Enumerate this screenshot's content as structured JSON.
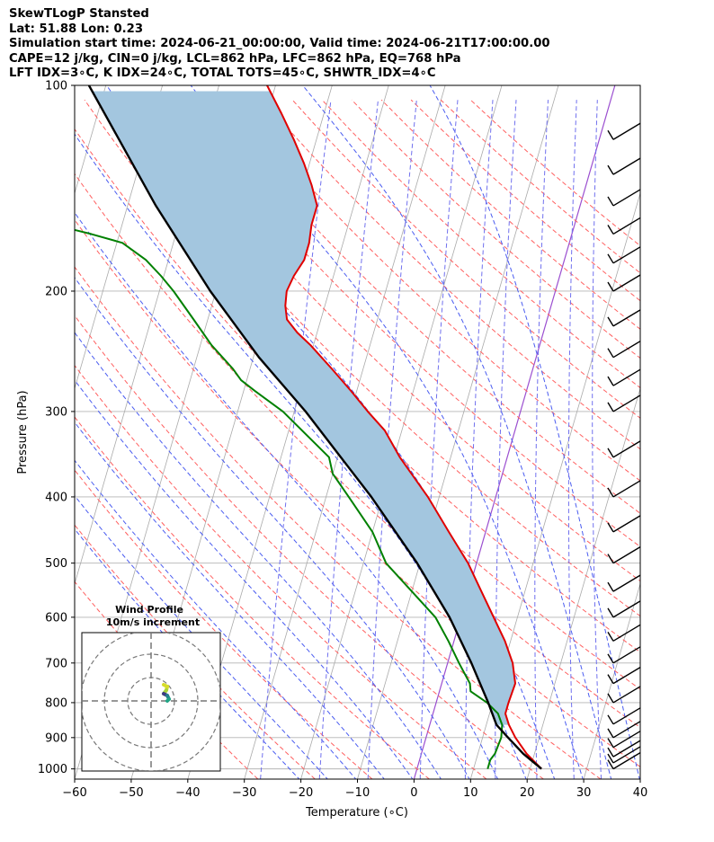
{
  "header": {
    "line1": "SkewTLogP Stansted",
    "line2": "Lat: 51.88   Lon: 0.23",
    "line3": "Simulation start time: 2024-06-21_00:00:00, Valid time: 2024-06-21T17:00:00.00",
    "line4": "CAPE=12 j/kg, CIN=0 j/kg, LCL=862 hPa, LFC=862 hPa, EQ=768 hPa",
    "line5": "LFT IDX=3∘C, K IDX=24∘C, TOTAL TOTS=45∘C, SHWTR_IDX=4∘C"
  },
  "colors": {
    "temperature": "#e00000",
    "dewpoint": "#008000",
    "parcel": "#000000",
    "cape_fill": "#a3c6df",
    "dry_adiabat": "#ff6060",
    "moist_adiabat": "#4a5cf0",
    "mixing_ratio": "#7070ee",
    "isotherm": "#aaaaaa",
    "zero_isotherm": "#9b4fd0",
    "isobar": "#b4b4b4"
  },
  "inset": {
    "title_line1": "Wind Profile",
    "title_line2": "10m/s increment"
  },
  "chart_data": {
    "type": "line",
    "xlabel": "Temperature (∘C)",
    "ylabel": "Pressure (hPa)",
    "xlim": [
      -60,
      40
    ],
    "ylim": [
      1035,
      100
    ],
    "y_scale": "log",
    "skew": "skew-T log-p diagram",
    "grid": true,
    "x_ticks": [
      -60,
      -50,
      -40,
      -30,
      -20,
      -10,
      0,
      10,
      20,
      30,
      40
    ],
    "y_ticks": [
      100,
      200,
      300,
      400,
      500,
      600,
      700,
      800,
      900,
      1000
    ],
    "series": [
      {
        "key": "temperature",
        "color": "#e00000",
        "values": [
          [
            1000,
            22
          ],
          [
            950,
            18.6
          ],
          [
            900,
            15.8
          ],
          [
            862,
            14
          ],
          [
            830,
            12.8
          ],
          [
            800,
            12.8
          ],
          [
            750,
            13
          ],
          [
            700,
            11.5
          ],
          [
            650,
            9
          ],
          [
            600,
            5.8
          ],
          [
            550,
            2.3
          ],
          [
            500,
            -1.5
          ],
          [
            450,
            -6.5
          ],
          [
            400,
            -12
          ],
          [
            350,
            -19
          ],
          [
            320,
            -23
          ],
          [
            300,
            -27
          ],
          [
            280,
            -31
          ],
          [
            260,
            -35.5
          ],
          [
            240,
            -40.5
          ],
          [
            230,
            -43.5
          ],
          [
            220,
            -46
          ],
          [
            210,
            -47
          ],
          [
            200,
            -47.5
          ],
          [
            190,
            -47
          ],
          [
            180,
            -46
          ],
          [
            170,
            -46
          ],
          [
            160,
            -46.5
          ],
          [
            150,
            -46.5
          ],
          [
            140,
            -48.5
          ],
          [
            130,
            -51
          ],
          [
            120,
            -54
          ],
          [
            110,
            -57.5
          ],
          [
            100,
            -61.5
          ]
        ]
      },
      {
        "key": "dewpoint",
        "color": "#008000",
        "values": [
          [
            1000,
            12.5
          ],
          [
            970,
            12.5
          ],
          [
            950,
            13
          ],
          [
            900,
            13.3
          ],
          [
            862,
            12.8
          ],
          [
            830,
            11.5
          ],
          [
            800,
            9
          ],
          [
            770,
            5.5
          ],
          [
            750,
            5
          ],
          [
            700,
            2
          ],
          [
            650,
            -1
          ],
          [
            600,
            -4.5
          ],
          [
            550,
            -10
          ],
          [
            500,
            -16
          ],
          [
            450,
            -20
          ],
          [
            400,
            -26
          ],
          [
            370,
            -30
          ],
          [
            350,
            -31.5
          ],
          [
            300,
            -42
          ],
          [
            280,
            -48
          ],
          [
            270,
            -51
          ],
          [
            260,
            -53
          ],
          [
            240,
            -58
          ],
          [
            220,
            -62.5
          ],
          [
            200,
            -67.5
          ],
          [
            190,
            -70.5
          ],
          [
            180,
            -74
          ],
          [
            170,
            -79
          ],
          [
            165,
            -85
          ],
          [
            160,
            -92
          ],
          [
            150,
            -93
          ],
          [
            140,
            -92
          ],
          [
            120,
            -93
          ],
          [
            100,
            -96
          ]
        ]
      },
      {
        "key": "parcel",
        "color": "#000000",
        "values": [
          [
            1000,
            22
          ],
          [
            950,
            18
          ],
          [
            900,
            14.5
          ],
          [
            862,
            11.8
          ],
          [
            800,
            9.2
          ],
          [
            700,
            4.2
          ],
          [
            600,
            -2
          ],
          [
            500,
            -10.5
          ],
          [
            400,
            -22
          ],
          [
            300,
            -38
          ],
          [
            250,
            -49
          ],
          [
            200,
            -61
          ],
          [
            150,
            -75
          ],
          [
            100,
            -93
          ]
        ]
      }
    ],
    "cape_region": "between parcel and environment temperature, 862 to 100 hPa",
    "wind_barbs": {
      "pressures": [
        1000,
        980,
        960,
        930,
        900,
        860,
        800,
        750,
        700,
        650,
        600,
        550,
        500,
        450,
        400,
        350,
        300,
        275,
        250,
        225,
        200,
        182,
        165,
        150,
        135,
        120
      ]
    },
    "inset_wind_profile": {
      "title": [
        "Wind Profile",
        "10m/s increment"
      ],
      "rings": [
        10,
        20,
        30
      ]
    }
  }
}
